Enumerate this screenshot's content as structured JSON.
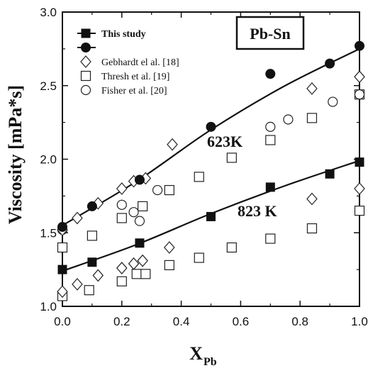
{
  "chart_data": {
    "type": "scatter",
    "title": "Pb-Sn",
    "xlabel_main": "X",
    "xlabel_sub": "Pb",
    "ylabel": "Viscosity [mPa*s]",
    "xlim": [
      0.0,
      1.0
    ],
    "ylim": [
      1.0,
      3.0
    ],
    "xticks": [
      0.0,
      0.2,
      0.4,
      0.6,
      0.8,
      1.0
    ],
    "xtick_labels": [
      "0.0",
      "0.2",
      "0.4",
      "0.6",
      "0.8",
      "1.0"
    ],
    "yticks": [
      1.0,
      1.5,
      2.0,
      2.5,
      3.0
    ],
    "ytick_labels": [
      "1.0",
      "1.5",
      "2.0",
      "2.5",
      "3.0"
    ],
    "grid": false,
    "legend_position": "top-left",
    "annotations": [
      {
        "text": "623K",
        "x": 0.49,
        "y": 2.1
      },
      {
        "text": "823 K",
        "x": 0.6,
        "y": 1.6
      }
    ],
    "legend": [
      {
        "label": "This study",
        "marker": "square-filled-line"
      },
      {
        "label": "",
        "marker": "circle-filled-line"
      },
      {
        "label": "Gebhardt el al. [18]",
        "marker": "diamond"
      },
      {
        "label": "Thresh et al. [19]",
        "marker": "square-open"
      },
      {
        "label": "Fisher et al. [20]",
        "marker": "circle-open"
      }
    ],
    "series": [
      {
        "name": "This study",
        "marker": "circle-filled",
        "temperature": "623K",
        "points": [
          [
            0.0,
            1.54
          ],
          [
            0.1,
            1.68
          ],
          [
            0.26,
            1.86
          ],
          [
            0.5,
            2.22
          ],
          [
            0.7,
            2.58
          ],
          [
            0.9,
            2.65
          ],
          [
            1.0,
            2.77
          ]
        ]
      },
      {
        "name": "This study",
        "marker": "square-filled",
        "temperature": "823 K",
        "points": [
          [
            0.0,
            1.25
          ],
          [
            0.1,
            1.3
          ],
          [
            0.26,
            1.43
          ],
          [
            0.5,
            1.61
          ],
          [
            0.7,
            1.81
          ],
          [
            0.9,
            1.9
          ],
          [
            1.0,
            1.98
          ]
        ]
      },
      {
        "name": "Gebhardt el al. [18]",
        "marker": "diamond",
        "points": [
          [
            0.0,
            1.52
          ],
          [
            0.05,
            1.6
          ],
          [
            0.12,
            1.7
          ],
          [
            0.2,
            1.8
          ],
          [
            0.24,
            1.85
          ],
          [
            0.28,
            1.87
          ],
          [
            0.37,
            2.1
          ],
          [
            0.84,
            2.48
          ],
          [
            1.0,
            2.56
          ],
          [
            0.0,
            1.1
          ],
          [
            0.05,
            1.15
          ],
          [
            0.12,
            1.21
          ],
          [
            0.2,
            1.26
          ],
          [
            0.24,
            1.29
          ],
          [
            0.27,
            1.31
          ],
          [
            0.36,
            1.4
          ],
          [
            0.84,
            1.73
          ],
          [
            1.0,
            1.8
          ]
        ]
      },
      {
        "name": "Thresh et al. [19]",
        "marker": "square-open",
        "points": [
          [
            0.0,
            1.4
          ],
          [
            0.1,
            1.48
          ],
          [
            0.2,
            1.6
          ],
          [
            0.27,
            1.68
          ],
          [
            0.36,
            1.79
          ],
          [
            0.46,
            1.88
          ],
          [
            0.57,
            2.01
          ],
          [
            0.7,
            2.13
          ],
          [
            0.84,
            2.28
          ],
          [
            1.0,
            2.44
          ],
          [
            0.0,
            1.07
          ],
          [
            0.09,
            1.11
          ],
          [
            0.2,
            1.17
          ],
          [
            0.25,
            1.22
          ],
          [
            0.28,
            1.22
          ],
          [
            0.36,
            1.28
          ],
          [
            0.46,
            1.33
          ],
          [
            0.57,
            1.4
          ],
          [
            0.7,
            1.46
          ],
          [
            0.84,
            1.53
          ],
          [
            1.0,
            1.65
          ]
        ]
      },
      {
        "name": "Fisher et al. [20]",
        "marker": "circle-open",
        "points": [
          [
            0.0,
            1.52
          ],
          [
            0.2,
            1.69
          ],
          [
            0.24,
            1.64
          ],
          [
            0.26,
            1.58
          ],
          [
            0.32,
            1.79
          ],
          [
            0.7,
            2.22
          ],
          [
            0.76,
            2.27
          ],
          [
            0.91,
            2.39
          ],
          [
            1.0,
            2.44
          ]
        ]
      }
    ],
    "fit_lines": [
      {
        "temperature": "623K",
        "points": [
          [
            0.0,
            1.55
          ],
          [
            0.25,
            1.85
          ],
          [
            0.5,
            2.2
          ],
          [
            0.75,
            2.5
          ],
          [
            1.0,
            2.75
          ]
        ]
      },
      {
        "temperature": "823 K",
        "points": [
          [
            0.0,
            1.24
          ],
          [
            0.25,
            1.42
          ],
          [
            0.5,
            1.63
          ],
          [
            0.75,
            1.82
          ],
          [
            1.0,
            1.99
          ]
        ]
      }
    ]
  }
}
